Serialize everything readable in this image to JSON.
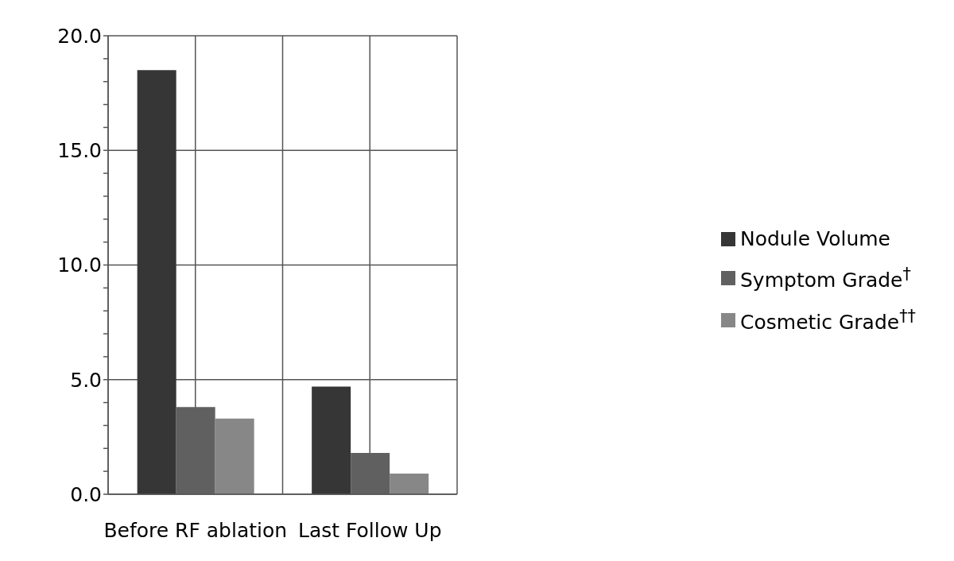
{
  "chart_data": {
    "type": "bar",
    "categories": [
      "Before RF ablation",
      "Last Follow Up"
    ],
    "series": [
      {
        "name": "Nodule Volume",
        "color": "#363636",
        "values": [
          18.5,
          4.7
        ]
      },
      {
        "name": "Symptom Grade$^{†}$",
        "color": "#606060",
        "values": [
          3.8,
          1.8
        ]
      },
      {
        "name": "Cosmetic Grade$^{††}$",
        "color": "#878787",
        "values": [
          3.3,
          0.9
        ]
      }
    ],
    "ylim": [
      0,
      20
    ],
    "yticks": [
      {
        "value": 0,
        "label": "0.0"
      },
      {
        "value": 1,
        "label": null
      },
      {
        "value": 2,
        "label": null
      },
      {
        "value": 3,
        "label": null
      },
      {
        "value": 4,
        "label": null
      },
      {
        "value": 5,
        "label": "5.0"
      },
      {
        "value": 6,
        "label": null
      },
      {
        "value": 7,
        "label": null
      },
      {
        "value": 8,
        "label": null
      },
      {
        "value": 9,
        "label": null
      },
      {
        "value": 10,
        "label": "10.0"
      },
      {
        "value": 11,
        "label": null
      },
      {
        "value": 12,
        "label": null
      },
      {
        "value": 13,
        "label": null
      },
      {
        "value": 14,
        "label": null
      },
      {
        "value": 15,
        "label": "15.0"
      },
      {
        "value": 16,
        "label": null
      },
      {
        "value": 17,
        "label": null
      },
      {
        "value": 18,
        "label": null
      },
      {
        "value": 19,
        "label": null
      },
      {
        "value": 20,
        "label": "20.0"
      }
    ],
    "grid": true,
    "legend": "right"
  }
}
